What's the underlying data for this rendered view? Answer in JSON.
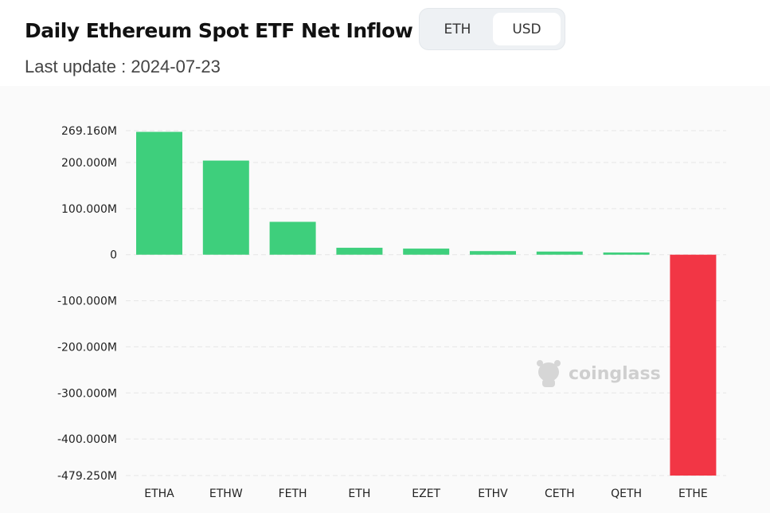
{
  "header": {
    "title": "Daily Ethereum Spot ETF Net Inflow",
    "subtitle": "Last update : 2024-07-23"
  },
  "toggle": {
    "options": [
      "ETH",
      "USD"
    ],
    "selected": "USD"
  },
  "watermark": {
    "text": "coinglass",
    "icon": "coinglass-logo-icon"
  },
  "colors": {
    "positive": "#3ecf7c",
    "negative": "#f23645",
    "grid": "#e6e6e6"
  },
  "chart_data": {
    "type": "bar",
    "categories": [
      "ETHA",
      "ETHW",
      "FETH",
      "ETH",
      "EZET",
      "ETHV",
      "CETH",
      "QETH",
      "ETHE"
    ],
    "values": [
      266.5,
      204.2,
      71.3,
      15.0,
      13.2,
      7.8,
      6.8,
      4.8,
      -479.25
    ],
    "ylim": [
      -479.25,
      269.16
    ],
    "yticks": [
      269.16,
      200,
      100,
      0,
      -100,
      -200,
      -300,
      -400,
      -479.25
    ],
    "ytick_labels": [
      "269.160M",
      "200.000M",
      "100.000M",
      "0",
      "-100.000M",
      "-200.000M",
      "-300.000M",
      "-400.000M",
      "-479.250M"
    ],
    "unit": "M",
    "grid": true,
    "legend": "none"
  }
}
